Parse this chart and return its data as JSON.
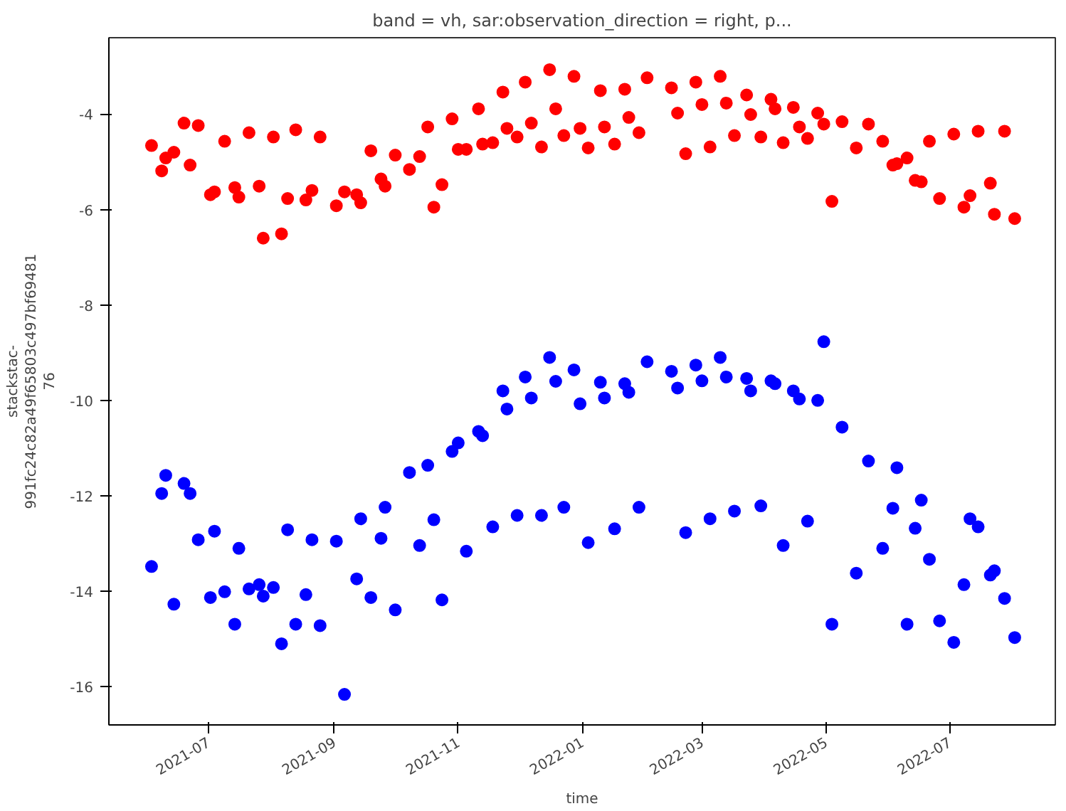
{
  "chart_data": {
    "type": "scatter",
    "title": "band = vh, sar:observation_direction = right, p...",
    "xlabel": "time",
    "ylabel": "stackstac-\n991fc24c82a49f65803c497bf69481\n76",
    "x": [
      "2021-06-03",
      "2021-06-08",
      "2021-06-10",
      "2021-06-14",
      "2021-06-19",
      "2021-06-22",
      "2021-06-26",
      "2021-07-02",
      "2021-07-04",
      "2021-07-09",
      "2021-07-14",
      "2021-07-16",
      "2021-07-21",
      "2021-07-26",
      "2021-07-28",
      "2021-08-02",
      "2021-08-06",
      "2021-08-09",
      "2021-08-13",
      "2021-08-18",
      "2021-08-21",
      "2021-08-25",
      "2021-09-02",
      "2021-09-06",
      "2021-09-12",
      "2021-09-14",
      "2021-09-19",
      "2021-09-24",
      "2021-09-26",
      "2021-10-01",
      "2021-10-08",
      "2021-10-13",
      "2021-10-17",
      "2021-10-20",
      "2021-10-24",
      "2021-10-29",
      "2021-11-01",
      "2021-11-05",
      "2021-11-11",
      "2021-11-13",
      "2021-11-18",
      "2021-11-23",
      "2021-11-25",
      "2021-11-30",
      "2021-12-04",
      "2021-12-07",
      "2021-12-12",
      "2021-12-16",
      "2021-12-19",
      "2021-12-23",
      "2021-12-28",
      "2021-12-31",
      "2022-01-04",
      "2022-01-10",
      "2022-01-12",
      "2022-01-17",
      "2022-01-22",
      "2022-01-24",
      "2022-01-29",
      "2022-02-02",
      "2022-02-14",
      "2022-02-17",
      "2022-02-21",
      "2022-02-26",
      "2022-03-01",
      "2022-03-05",
      "2022-03-10",
      "2022-03-13",
      "2022-03-17",
      "2022-03-23",
      "2022-03-25",
      "2022-03-30",
      "2022-04-04",
      "2022-04-06",
      "2022-04-10",
      "2022-04-15",
      "2022-04-18",
      "2022-04-22",
      "2022-04-27",
      "2022-04-30",
      "2022-05-04",
      "2022-05-09",
      "2022-05-16",
      "2022-05-22",
      "2022-05-29",
      "2022-06-03",
      "2022-06-05",
      "2022-06-10",
      "2022-06-14",
      "2022-06-17",
      "2022-06-21",
      "2022-06-26",
      "2022-07-03",
      "2022-07-08",
      "2022-07-11",
      "2022-07-15",
      "2022-07-21",
      "2022-07-23",
      "2022-07-28",
      "2022-08-02"
    ],
    "series": [
      {
        "color": "#ff0000",
        "values": [
          -4.66,
          -5.19,
          -4.92,
          -4.8,
          -4.19,
          -5.07,
          -4.24,
          -5.69,
          -5.63,
          -4.57,
          -5.54,
          -5.74,
          -4.39,
          -5.51,
          -6.6,
          -4.48,
          -6.51,
          -5.77,
          -4.33,
          -5.8,
          -5.6,
          -4.48,
          -5.92,
          -5.63,
          -5.69,
          -5.86,
          -4.77,
          -5.36,
          -5.51,
          -4.86,
          -5.16,
          -4.89,
          -4.27,
          -5.95,
          -5.48,
          -4.1,
          -4.74,
          -4.74,
          -3.89,
          -4.63,
          -4.6,
          -3.54,
          -4.3,
          -4.48,
          -3.33,
          -4.19,
          -4.69,
          -3.07,
          -3.89,
          -4.45,
          -3.21,
          -4.3,
          -4.71,
          -3.51,
          -4.27,
          -4.63,
          -3.48,
          -4.07,
          -4.39,
          -3.24,
          -3.45,
          -3.98,
          -4.83,
          -3.33,
          -3.8,
          -4.69,
          -3.21,
          -3.77,
          -4.45,
          -3.6,
          -4.01,
          -4.48,
          -3.69,
          -3.89,
          -4.6,
          -3.86,
          -4.27,
          -4.51,
          -3.98,
          -4.21,
          -5.83,
          -4.16,
          -4.71,
          -4.21,
          -4.57,
          -5.07,
          -5.04,
          -4.92,
          -5.39,
          -5.42,
          -4.57,
          -5.77,
          -4.42,
          -5.95,
          -5.71,
          -4.36,
          -5.45,
          -6.1,
          -4.36,
          -6.19
        ]
      },
      {
        "color": "#0000ff",
        "values": [
          -13.48,
          -11.95,
          -11.57,
          -14.27,
          -11.74,
          -11.95,
          -12.92,
          -14.13,
          -12.74,
          -14.01,
          -14.69,
          -13.1,
          -13.95,
          -13.86,
          -14.1,
          -13.92,
          -15.1,
          -12.71,
          -14.69,
          -14.07,
          -12.92,
          -14.72,
          -12.95,
          -16.16,
          -13.74,
          -12.48,
          -14.13,
          -12.89,
          -12.24,
          -14.39,
          -11.51,
          -13.04,
          -11.36,
          -12.5,
          -14.18,
          -11.07,
          -10.89,
          -13.16,
          -10.65,
          -10.74,
          -12.65,
          -9.8,
          -10.18,
          -12.41,
          -9.51,
          -9.95,
          -12.41,
          -9.1,
          -9.6,
          -12.24,
          -9.36,
          -10.07,
          -12.98,
          -9.62,
          -9.95,
          -12.69,
          -9.65,
          -9.83,
          -12.24,
          -9.19,
          -9.39,
          -9.74,
          -12.77,
          -9.26,
          -9.59,
          -12.48,
          -9.1,
          -9.51,
          -12.32,
          -9.54,
          -9.8,
          -12.21,
          -9.59,
          -9.65,
          -13.04,
          -9.8,
          -9.97,
          -12.53,
          -10.0,
          -8.77,
          -14.69,
          -10.56,
          -13.62,
          -11.27,
          -13.1,
          -12.26,
          -11.41,
          -14.69,
          -12.68,
          -12.09,
          -13.33,
          -14.62,
          -15.07,
          -13.86,
          -12.48,
          -12.65,
          -13.66,
          -13.57,
          -14.15,
          -14.97
        ]
      }
    ],
    "xlim": [
      "2021-05-13",
      "2022-08-22"
    ],
    "xticks": [
      "2021-07",
      "2021-09",
      "2021-11",
      "2022-01",
      "2022-03",
      "2022-05",
      "2022-07"
    ],
    "ylim": [
      -16.8,
      -2.4
    ],
    "yticks": [
      -16,
      -14,
      -12,
      -10,
      -8,
      -6,
      -4
    ],
    "marker": "circle",
    "grid": false
  }
}
